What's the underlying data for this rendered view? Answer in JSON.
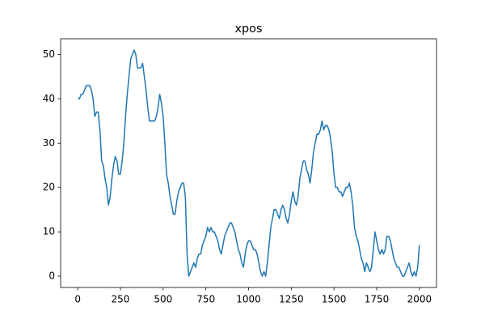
{
  "chart_data": {
    "type": "line",
    "title": "xpos",
    "x": [
      0,
      10,
      20,
      30,
      40,
      50,
      60,
      70,
      80,
      90,
      100,
      110,
      120,
      130,
      140,
      150,
      160,
      170,
      180,
      190,
      200,
      210,
      220,
      230,
      240,
      250,
      260,
      270,
      280,
      290,
      300,
      310,
      320,
      330,
      340,
      350,
      360,
      370,
      380,
      390,
      400,
      410,
      420,
      430,
      440,
      450,
      460,
      470,
      480,
      490,
      500,
      510,
      520,
      530,
      540,
      550,
      560,
      570,
      580,
      590,
      600,
      610,
      620,
      630,
      640,
      650,
      660,
      670,
      680,
      690,
      700,
      710,
      720,
      730,
      740,
      750,
      760,
      770,
      780,
      790,
      800,
      810,
      820,
      830,
      840,
      850,
      860,
      870,
      880,
      890,
      900,
      910,
      920,
      930,
      940,
      950,
      960,
      970,
      980,
      990,
      1000,
      1010,
      1020,
      1030,
      1040,
      1050,
      1060,
      1070,
      1080,
      1090,
      1100,
      1110,
      1120,
      1130,
      1140,
      1150,
      1160,
      1170,
      1180,
      1190,
      1200,
      1210,
      1220,
      1230,
      1240,
      1250,
      1260,
      1270,
      1280,
      1290,
      1300,
      1310,
      1320,
      1330,
      1340,
      1350,
      1360,
      1370,
      1380,
      1390,
      1400,
      1410,
      1420,
      1430,
      1440,
      1450,
      1460,
      1470,
      1480,
      1490,
      1500,
      1510,
      1520,
      1530,
      1540,
      1550,
      1560,
      1570,
      1580,
      1590,
      1600,
      1610,
      1620,
      1630,
      1640,
      1650,
      1660,
      1670,
      1680,
      1690,
      1700,
      1710,
      1720,
      1730,
      1740,
      1750,
      1760,
      1770,
      1780,
      1790,
      1800,
      1810,
      1820,
      1830,
      1840,
      1850,
      1860,
      1870,
      1880,
      1890,
      1900,
      1910,
      1920,
      1930,
      1940,
      1950,
      1960,
      1970,
      1980,
      1990,
      2000
    ],
    "series": [
      {
        "color": "#1f77b4",
        "values": [
          40,
          40,
          41,
          41,
          42,
          43,
          43,
          43,
          42,
          40,
          36,
          37,
          37,
          33,
          26,
          25,
          22,
          20,
          16,
          18,
          22,
          25,
          27,
          26,
          23,
          23,
          26,
          30,
          36,
          41,
          45,
          49,
          50,
          51,
          50,
          47,
          47,
          47,
          48,
          45,
          42,
          38,
          35,
          35,
          35,
          35,
          36,
          38,
          41,
          39,
          36,
          30,
          23,
          21,
          18,
          16,
          14,
          14,
          17,
          19,
          20,
          21,
          21,
          18,
          5,
          0,
          1,
          2,
          3,
          2,
          4,
          5,
          5,
          7,
          8,
          9,
          11,
          10,
          11,
          10,
          10,
          9,
          8,
          6,
          5,
          7,
          9,
          10,
          11,
          12,
          12,
          11,
          10,
          8,
          6,
          5,
          3,
          2,
          5,
          7,
          8,
          8,
          7,
          6,
          6,
          5,
          3,
          1,
          0,
          1,
          0,
          3,
          7,
          11,
          13,
          15,
          15,
          14,
          13,
          15,
          16,
          15,
          13,
          12,
          14,
          17,
          19,
          17,
          16,
          18,
          22,
          24,
          26,
          26,
          24,
          23,
          21,
          24,
          28,
          30,
          32,
          32,
          33,
          35,
          33,
          34,
          34,
          33,
          31,
          28,
          23,
          20,
          20,
          19,
          19,
          18,
          19,
          20,
          20,
          21,
          19,
          16,
          11,
          9,
          8,
          6,
          4,
          3,
          1,
          3,
          2,
          1,
          2,
          6,
          10,
          8,
          6,
          5,
          6,
          5,
          6,
          9,
          9,
          8,
          6,
          4,
          3,
          2,
          2,
          1,
          0,
          0,
          1,
          2,
          3,
          1,
          0,
          1,
          0,
          2,
          7
        ]
      }
    ],
    "xlim": [
      -100,
      2100
    ],
    "ylim": [
      -2.55,
      53.55
    ],
    "xticks": [
      0,
      250,
      500,
      750,
      1000,
      1250,
      1500,
      1750,
      2000
    ],
    "yticks": [
      0,
      10,
      20,
      30,
      40,
      50
    ]
  }
}
